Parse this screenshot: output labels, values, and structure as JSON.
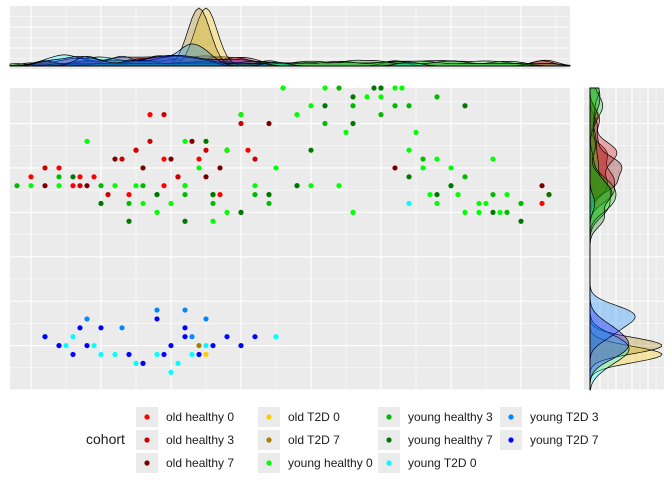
{
  "chart_data": {
    "type": "scatter",
    "title": "",
    "xlabel": "",
    "ylabel": "",
    "grid": true,
    "background": "#EBEBEB",
    "marginals": {
      "top": "density",
      "right": "density"
    },
    "xlim": [
      -43,
      37
    ],
    "ylim": [
      -20,
      14
    ],
    "legend": {
      "title": "cohort",
      "placement": "bottom",
      "columns": [
        [
          "old healthy 0",
          "old healthy 3",
          "old healthy 7"
        ],
        [
          "old T2D 0",
          "old T2D 7",
          "young healthy 0"
        ],
        [
          "young healthy 3",
          "young healthy 7",
          "young T2D 0"
        ],
        [
          "young T2D 3",
          "young T2D 7"
        ]
      ]
    },
    "series": [
      {
        "name": "old healthy 0",
        "color": "#FF0000",
        "x": [
          -40,
          -36,
          -34,
          -33,
          -31,
          -26,
          -25,
          -23,
          -21,
          -21,
          -19,
          -16,
          -14,
          -13,
          -12,
          -10,
          -9,
          33,
          34
        ],
        "y": [
          4,
          5,
          3,
          4,
          4,
          2,
          7,
          11,
          6,
          3,
          4,
          6,
          2,
          2,
          7,
          11,
          7,
          1,
          2
        ]
      },
      {
        "name": "old healthy 3",
        "color": "#CC0000",
        "x": [
          -38,
          -33,
          -29,
          -27,
          -25,
          -23,
          -21,
          -19,
          -18,
          -15,
          -12,
          -10,
          -8
        ],
        "y": [
          5,
          3,
          2,
          6,
          7,
          8,
          11,
          4,
          3,
          7,
          7,
          10,
          6
        ]
      },
      {
        "name": "old healthy 7",
        "color": "#7A0000",
        "x": [
          -38,
          -32,
          -28,
          -24,
          -20,
          -17,
          -15,
          -13,
          -6,
          12,
          33
        ],
        "y": [
          3,
          3,
          6,
          5,
          6,
          8,
          4,
          5,
          10,
          5,
          3
        ]
      },
      {
        "name": "old T2D 0",
        "color": "#FFCC00",
        "x": [
          -15
        ],
        "y": [
          -16
        ]
      },
      {
        "name": "old T2D 7",
        "color": "#A58100",
        "x": [
          -16
        ],
        "y": [
          -15
        ]
      },
      {
        "name": "young healthy 0",
        "color": "#00FF00",
        "x": [
          -40,
          -36,
          -32,
          -30,
          -28,
          -24,
          -22,
          -20,
          -18,
          -18,
          -16,
          -14,
          -12,
          -12,
          -10,
          -8,
          -6,
          -4,
          -2,
          0,
          2,
          4,
          6,
          8,
          10,
          12,
          14,
          16,
          18,
          20,
          22,
          24,
          26,
          27,
          28,
          30,
          -25,
          -14,
          -5,
          0,
          5,
          15,
          25,
          13,
          20,
          10,
          17,
          24,
          18,
          21
        ],
        "y": [
          3,
          3,
          8,
          1,
          3,
          1,
          0,
          1,
          3,
          8,
          5,
          2,
          0,
          7,
          11,
          3,
          2,
          14,
          11,
          3,
          14,
          3,
          0,
          13,
          13,
          14,
          7,
          5,
          1,
          3,
          0,
          1,
          6,
          0,
          2,
          1,
          3,
          -1,
          5,
          12,
          9,
          9,
          1,
          14,
          5,
          14,
          2,
          0,
          6,
          2
        ]
      },
      {
        "name": "young healthy 3",
        "color": "#00BB00",
        "x": [
          -42,
          -36,
          -30,
          -26,
          -22,
          -18,
          -14,
          -10,
          -6,
          -2,
          2,
          6,
          10,
          14,
          18,
          22,
          26,
          30,
          -24,
          -8,
          4,
          12,
          16,
          28
        ],
        "y": [
          3,
          4,
          3,
          1,
          2,
          2,
          1,
          0,
          1,
          3,
          10,
          12,
          11,
          12,
          13,
          4,
          2,
          1,
          3,
          2,
          14,
          12,
          6,
          0
        ]
      },
      {
        "name": "young healthy 7",
        "color": "#007700",
        "x": [
          -34,
          -30,
          -26,
          -22,
          -18,
          -14,
          -10,
          -6,
          -2,
          2,
          6,
          10,
          14,
          18,
          22,
          26,
          30,
          34,
          -15,
          6,
          20,
          0,
          9
        ],
        "y": [
          4,
          1,
          -1,
          2,
          -1,
          2,
          0,
          2,
          3,
          12,
          13,
          14,
          4,
          2,
          12,
          0,
          -1,
          2,
          8,
          10,
          3,
          7,
          14
        ]
      },
      {
        "name": "young T2D 0",
        "color": "#00FFFF",
        "x": [
          -38,
          -35,
          -34,
          -31,
          -28,
          -25,
          -22,
          -19,
          -17,
          -15,
          14,
          -20,
          -5,
          -30,
          -36
        ],
        "y": [
          -14,
          -15,
          -14,
          -15,
          -16,
          -17,
          -16,
          -17,
          -16,
          -15,
          1,
          -18,
          -14,
          -16,
          -15
        ]
      },
      {
        "name": "young T2D 3",
        "color": "#0088FF",
        "x": [
          -32,
          -27,
          -22,
          -18,
          -17,
          -15
        ],
        "y": [
          -12,
          -13,
          -11,
          -11,
          -14,
          -12
        ]
      },
      {
        "name": "young T2D 7",
        "color": "#0000FF",
        "x": [
          -38,
          -36,
          -34,
          -32,
          -30,
          -24,
          -22,
          -20,
          -18,
          -16,
          -14,
          -12,
          -10,
          -8,
          -33,
          -18,
          -26,
          -21
        ],
        "y": [
          -14,
          -15,
          -16,
          -15,
          -13,
          -17,
          -12,
          -15,
          -14,
          -16,
          -15,
          -14,
          -15,
          -14,
          -13,
          -13,
          -16,
          -16
        ]
      }
    ]
  }
}
